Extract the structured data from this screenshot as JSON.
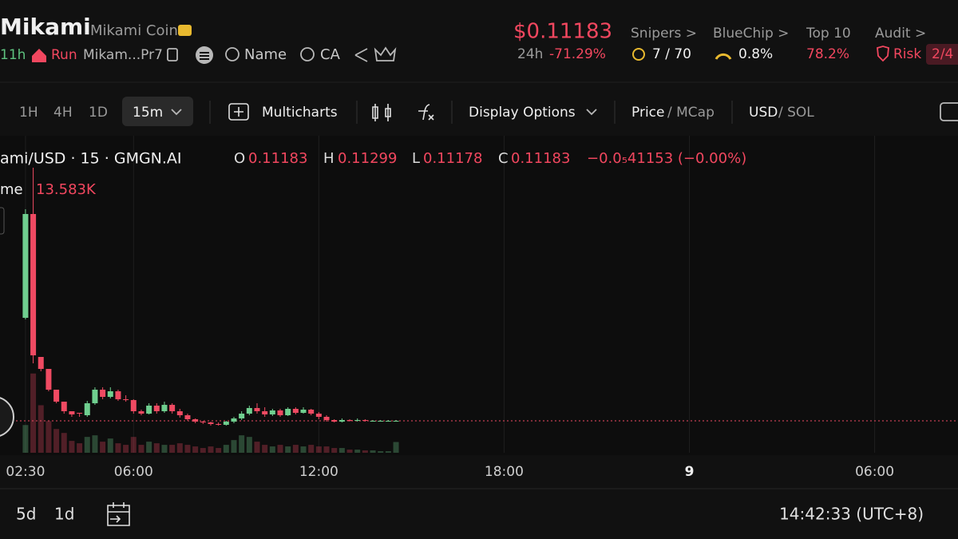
{
  "header": {
    "name": "Mikami",
    "full_name": "Mikami Coin",
    "age": "11h",
    "run": "Run",
    "address": "Mikam...Pr7",
    "search_name": "Name",
    "search_ca": "CA"
  },
  "price": {
    "value": "$0.11183",
    "period": "24h",
    "change": "-71.29%"
  },
  "stats": [
    {
      "label": "Snipers >",
      "value": "7 / 70"
    },
    {
      "label": "BlueChip >",
      "value": "0.8%"
    },
    {
      "label": "Top 10",
      "value": "78.2%"
    },
    {
      "label": "Audit >",
      "value": "Risk",
      "badge": "2/4"
    }
  ],
  "toolbar": {
    "intervals": [
      "1H",
      "4H",
      "1D"
    ],
    "selected_interval": "15m",
    "multicharts": "Multicharts",
    "display_options": "Display Options",
    "price": "Price",
    "mcap": "/ MCap",
    "usd": "USD",
    "sol": "/ SOL"
  },
  "chart_data": {
    "type": "candlestick",
    "symbol": "ami/USD · 15 · GMGN.AI",
    "ohlc": [
      {
        "label": "O",
        "value": "0.11183"
      },
      {
        "label": "H",
        "value": "0.11299"
      },
      {
        "label": "L",
        "value": "0.11178"
      },
      {
        "label": "C",
        "value": "0.11183"
      }
    ],
    "change": "−0.0₅41153 (−0.00%)",
    "volume_label": "me",
    "volume_value": "13.583K",
    "last_price": 0.11183,
    "colors": {
      "up": "#6fcf8f",
      "down": "#ef4a62"
    },
    "xlim": [
      -3.3,
      120.8
    ],
    "ylim": [
      0,
      1.11
    ],
    "volume_ylim": [
      0,
      400
    ],
    "xticks": [
      {
        "value": 0,
        "label": "02:30"
      },
      {
        "value": 14,
        "label": "06:00"
      },
      {
        "value": 38,
        "label": "12:00"
      },
      {
        "value": 62,
        "label": "18:00"
      },
      {
        "value": 86,
        "label": "9"
      },
      {
        "value": 110,
        "label": "06:00"
      }
    ],
    "candles": [
      [
        0.4725,
        0.8528,
        0.4669,
        0.836
      ],
      [
        0.836,
        0.9982,
        0.3132,
        0.3411
      ],
      [
        0.3355,
        0.3355,
        0.2852,
        0.2936
      ],
      [
        0.2936,
        0.2936,
        0.2153,
        0.2209
      ],
      [
        0.2209,
        0.2209,
        0.1734,
        0.1789
      ],
      [
        0.1789,
        0.1789,
        0.137,
        0.1454
      ],
      [
        0.1454,
        0.1454,
        0.1258,
        0.1342
      ],
      [
        0.1398,
        0.1398,
        0.1258,
        0.137
      ],
      [
        0.1314,
        0.1817,
        0.1258,
        0.1734
      ],
      [
        0.1734,
        0.2293,
        0.1678,
        0.2209
      ],
      [
        0.2209,
        0.2293,
        0.1873,
        0.1957
      ],
      [
        0.1957,
        0.2293,
        0.1901,
        0.2153
      ],
      [
        0.2153,
        0.2209,
        0.1817,
        0.1873
      ],
      [
        0.1873,
        0.2013,
        0.1789,
        0.1845
      ],
      [
        0.1845,
        0.1873,
        0.137,
        0.1454
      ],
      [
        0.1454,
        0.151,
        0.1314,
        0.137
      ],
      [
        0.137,
        0.1734,
        0.1342,
        0.165
      ],
      [
        0.165,
        0.1734,
        0.137,
        0.1454
      ],
      [
        0.1454,
        0.1789,
        0.1398,
        0.1678
      ],
      [
        0.1678,
        0.1734,
        0.137,
        0.1454
      ],
      [
        0.1454,
        0.1538,
        0.123,
        0.1314
      ],
      [
        0.1314,
        0.137,
        0.1118,
        0.1174
      ],
      [
        0.1174,
        0.1202,
        0.1035,
        0.109
      ],
      [
        0.109,
        0.1118,
        0.1007,
        0.1062
      ],
      [
        0.1062,
        0.109,
        0.0951,
        0.1007
      ],
      [
        0.1007,
        0.1062,
        0.0951,
        0.0979
      ],
      [
        0.0979,
        0.1118,
        0.0951,
        0.109
      ],
      [
        0.109,
        0.1258,
        0.1035,
        0.1202
      ],
      [
        0.1202,
        0.1454,
        0.1146,
        0.137
      ],
      [
        0.137,
        0.165,
        0.1314,
        0.1566
      ],
      [
        0.1566,
        0.1734,
        0.137,
        0.1454
      ],
      [
        0.1454,
        0.1594,
        0.1258,
        0.1342
      ],
      [
        0.1342,
        0.1538,
        0.1286,
        0.1482
      ],
      [
        0.1482,
        0.1538,
        0.1258,
        0.1314
      ],
      [
        0.1314,
        0.1594,
        0.1286,
        0.1538
      ],
      [
        0.1538,
        0.1594,
        0.1342,
        0.1398
      ],
      [
        0.1398,
        0.1594,
        0.137,
        0.151
      ],
      [
        0.151,
        0.1538,
        0.1314,
        0.137
      ],
      [
        0.137,
        0.1426,
        0.1174,
        0.1258
      ],
      [
        0.1258,
        0.1314,
        0.109,
        0.1146
      ],
      [
        0.1146,
        0.1174,
        0.1062,
        0.109
      ],
      [
        0.109,
        0.1202,
        0.1062,
        0.1146
      ],
      [
        0.1146,
        0.1174,
        0.109,
        0.1118
      ],
      [
        0.1118,
        0.1202,
        0.109,
        0.1146
      ],
      [
        0.1146,
        0.1174,
        0.109,
        0.1118
      ],
      [
        0.1118,
        0.1146,
        0.109,
        0.1118
      ],
      [
        0.1118,
        0.1146,
        0.109,
        0.1118
      ],
      [
        0.1118,
        0.1146,
        0.1118,
        0.1118
      ],
      [
        0.1118,
        0.1146,
        0.1118,
        0.1118
      ]
    ],
    "volumes": [
      35,
      100,
      60,
      40,
      30,
      25,
      15,
      12,
      20,
      22,
      14,
      18,
      12,
      10,
      20,
      10,
      14,
      12,
      10,
      10,
      12,
      10,
      8,
      6,
      8,
      6,
      10,
      16,
      22,
      20,
      14,
      10,
      8,
      10,
      8,
      10,
      8,
      10,
      8,
      8,
      6,
      6,
      4,
      4,
      3,
      3,
      2,
      2,
      13.583
    ]
  },
  "footer": {
    "ranges": [
      "5d",
      "1d"
    ],
    "clock": "14:42:33 (UTC+8)"
  }
}
